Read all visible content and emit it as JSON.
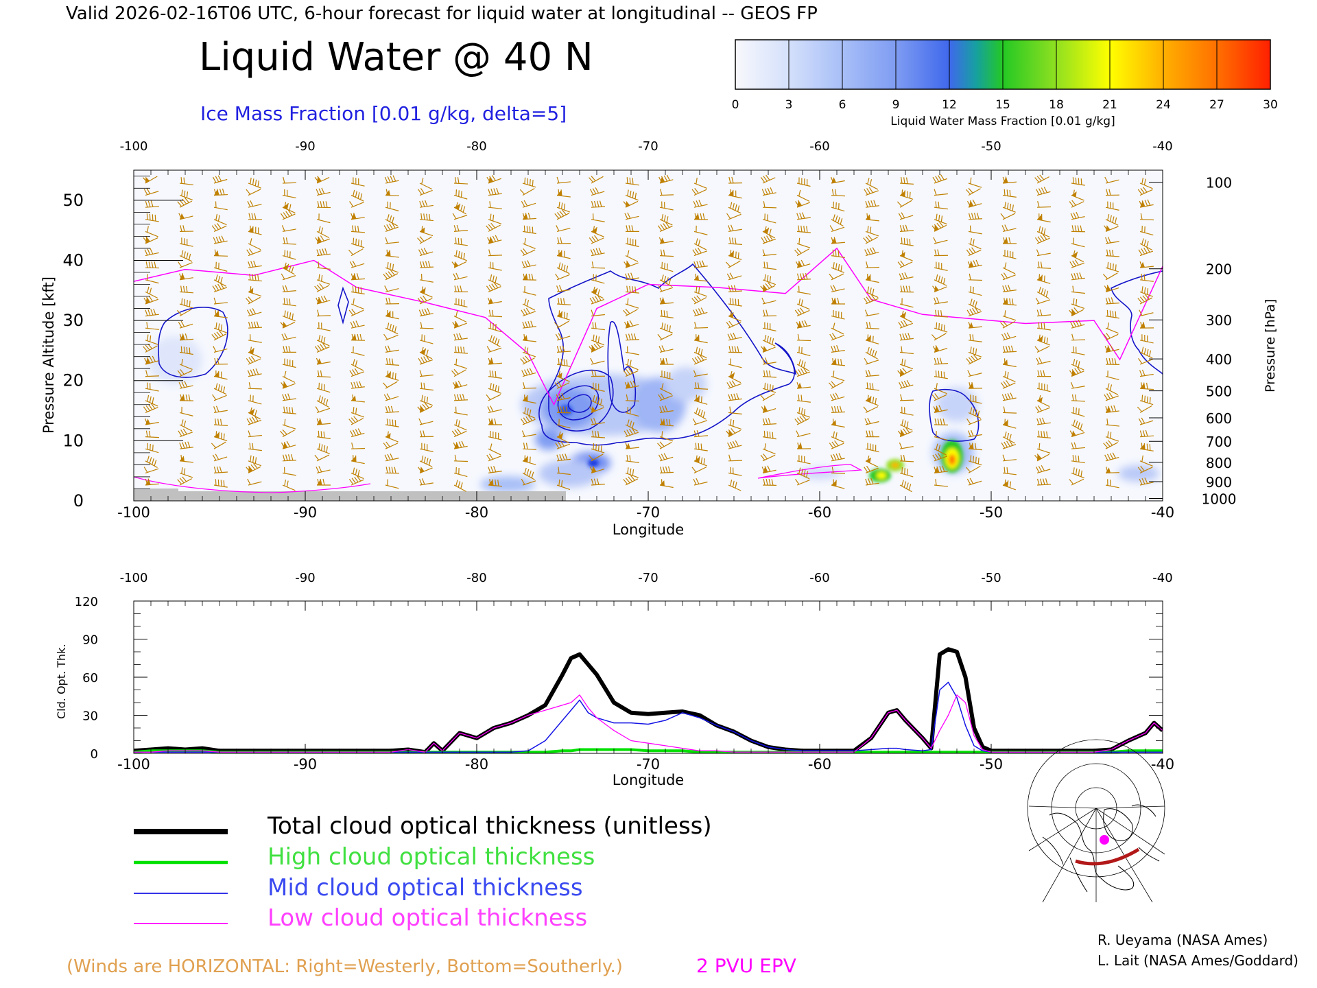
{
  "header": {
    "valid_line": "Valid 2026-02-16T06 UTC, 6-hour forecast for liquid water at longitudinal -- GEOS FP",
    "title": "Liquid Water @ 40 N",
    "subtitle": "Ice Mass Fraction [0.01 g/kg, delta=5]"
  },
  "colorbar": {
    "label": "Liquid Water Mass Fraction [0.01 g/kg]",
    "ticks": [
      "0",
      "3",
      "6",
      "9",
      "12",
      "15",
      "18",
      "21",
      "24",
      "27",
      "30"
    ],
    "colors": [
      "#f8f8fc",
      "#d4e0fb",
      "#a8bff7",
      "#7f9cf2",
      "#3f68ec",
      "#16a0a0",
      "#24c824",
      "#90e020",
      "#ffff00",
      "#ffb000",
      "#ff7000",
      "#ff2000"
    ]
  },
  "colors": {
    "ice_contour": "#1414c8",
    "epv": "#ff00ff",
    "wind_barb": "#c08000",
    "terrain": "#c0c0c0",
    "total": "#000000",
    "high": "#00e000",
    "mid": "#1414e6",
    "low": "#ff00ff"
  },
  "upper_panel": {
    "left_axis_label": "Pressure Altitude [kft]",
    "left_ticks": [
      "0",
      "10",
      "20",
      "30",
      "40",
      "50"
    ],
    "right_axis_label": "Pressure [hPa]",
    "right_ticks": [
      "100",
      "200",
      "300",
      "400",
      "500",
      "600",
      "700",
      "800",
      "900",
      "1000"
    ],
    "x_ticks_top": [
      "-100",
      "-90",
      "-80",
      "-70",
      "-60",
      "-50",
      "-40"
    ],
    "x_ticks_bottom": [
      "-100",
      "-90",
      "-80",
      "-70",
      "-60",
      "-50",
      "-40"
    ],
    "xlabel": "Longitude"
  },
  "lower_panel": {
    "left_axis_label": "Cld. Opt. Thk.",
    "y_ticks": [
      "0",
      "30",
      "60",
      "90",
      "120"
    ],
    "x_ticks_top": [
      "-100",
      "-90",
      "-80",
      "-70",
      "-60",
      "-50",
      "-40"
    ],
    "x_ticks_bottom": [
      "-100",
      "-90",
      "-80",
      "-70",
      "-60",
      "-50",
      "-40"
    ],
    "xlabel": "Longitude"
  },
  "legend": {
    "total": "Total cloud optical thickness (unitless)",
    "high": "High cloud optical thickness",
    "mid": "Mid cloud optical thickness",
    "low": "Low cloud optical thickness"
  },
  "footer": {
    "winds_note": "(Winds are HORIZONTAL: Right=Westerly, Bottom=Southerly.)",
    "epv_note": "2 PVU EPV",
    "credit1": "R. Ueyama (NASA Ames)",
    "credit2": "L. Lait (NASA Ames/Goddard)"
  },
  "chart_data": [
    {
      "type": "heatmap",
      "title": "Liquid Water @ 40 N",
      "xlabel": "Longitude",
      "ylabel": "Pressure Altitude [kft]",
      "y2label": "Pressure [hPa]",
      "xlim": [
        -100,
        -40
      ],
      "ylim": [
        0,
        55
      ],
      "liquid_water_blobs": [
        {
          "lon": -56.0,
          "alt_kft": 4.5,
          "value": 15
        },
        {
          "lon": -55.4,
          "alt_kft": 6.0,
          "value": 24
        },
        {
          "lon": -52.2,
          "alt_kft": 7.5,
          "value": 27
        },
        {
          "lon": -73.5,
          "alt_kft": 6.5,
          "value": 12
        },
        {
          "lon": -76.0,
          "alt_kft": 11.0,
          "value": 9
        },
        {
          "lon": -74.5,
          "alt_kft": 16.0,
          "value": 9
        },
        {
          "lon": -70.5,
          "alt_kft": 15.0,
          "value": 9
        },
        {
          "lon": -68.0,
          "alt_kft": 16.5,
          "value": 6
        },
        {
          "lon": -77.5,
          "alt_kft": 2.5,
          "value": 9
        },
        {
          "lon": -98.0,
          "alt_kft": 22.0,
          "value": 3
        },
        {
          "lon": -41.0,
          "alt_kft": 4.5,
          "value": 3
        },
        {
          "lon": -52.5,
          "alt_kft": 11.0,
          "value": 3
        }
      ],
      "epv_2pvu_line": [
        {
          "lon": -100,
          "alt_kft": 36.5
        },
        {
          "lon": -97,
          "alt_kft": 38.5
        },
        {
          "lon": -93,
          "alt_kft": 37.5
        },
        {
          "lon": -89.5,
          "alt_kft": 40
        },
        {
          "lon": -87,
          "alt_kft": 35.5
        },
        {
          "lon": -83,
          "alt_kft": 33
        },
        {
          "lon": -79.5,
          "alt_kft": 30.5
        },
        {
          "lon": -77,
          "alt_kft": 24.5
        },
        {
          "lon": -75.5,
          "alt_kft": 16
        },
        {
          "lon": -73,
          "alt_kft": 32
        },
        {
          "lon": -70,
          "alt_kft": 36
        },
        {
          "lon": -66,
          "alt_kft": 35.5
        },
        {
          "lon": -62,
          "alt_kft": 34.5
        },
        {
          "lon": -59,
          "alt_kft": 42
        },
        {
          "lon": -57,
          "alt_kft": 33.5
        },
        {
          "lon": -54,
          "alt_kft": 31
        },
        {
          "lon": -48,
          "alt_kft": 29.5
        },
        {
          "lon": -44,
          "alt_kft": 30
        },
        {
          "lon": -42.5,
          "alt_kft": 23.5
        },
        {
          "lon": -40,
          "alt_kft": 39
        }
      ]
    },
    {
      "type": "line",
      "xlabel": "Longitude",
      "ylabel": "Cld. Opt. Thk.",
      "xlim": [
        -100,
        -40
      ],
      "ylim": [
        0,
        120
      ],
      "x": [
        -100,
        -99,
        -98,
        -97,
        -96,
        -95,
        -90,
        -85,
        -84,
        -83,
        -82.5,
        -82,
        -81,
        -80,
        -79,
        -78,
        -77,
        -76,
        -75,
        -74.5,
        -74,
        -73.5,
        -73,
        -72,
        -71,
        -70,
        -69,
        -68,
        -67,
        -66,
        -65,
        -64,
        -63,
        -62,
        -61,
        -60,
        -59,
        -58,
        -57,
        -56,
        -55.5,
        -55,
        -54,
        -53.5,
        -53,
        -52.5,
        -52,
        -51.5,
        -51,
        -50.5,
        -50,
        -48,
        -46,
        -44,
        -43,
        -42,
        -41,
        -40.5,
        -40
      ],
      "series": [
        {
          "name": "Total cloud optical thickness (unitless)",
          "values": [
            2,
            3,
            4,
            3,
            4,
            2,
            2,
            2,
            3,
            1,
            8,
            2,
            16,
            12,
            20,
            24,
            30,
            38,
            62,
            75,
            78,
            70,
            62,
            40,
            32,
            31,
            32,
            33,
            30,
            22,
            17,
            10,
            5,
            3,
            2,
            2,
            2,
            2,
            12,
            32,
            34,
            26,
            12,
            4,
            78,
            82,
            80,
            60,
            20,
            5,
            2,
            2,
            2,
            2,
            3,
            10,
            16,
            24,
            18
          ]
        },
        {
          "name": "High cloud optical thickness",
          "values": [
            1,
            2,
            2,
            2,
            2,
            1,
            1,
            1,
            1,
            1,
            1,
            1,
            1,
            1,
            1,
            1,
            1,
            1,
            2,
            2,
            3,
            3,
            3,
            3,
            3,
            2,
            2,
            2,
            1,
            1,
            1,
            1,
            1,
            1,
            1,
            1,
            1,
            1,
            1,
            1,
            1,
            1,
            1,
            1,
            1,
            1,
            1,
            1,
            1,
            1,
            1,
            1,
            1,
            1,
            1,
            2,
            2,
            2,
            2
          ]
        },
        {
          "name": "Mid cloud optical thickness",
          "values": [
            1,
            1,
            1,
            1,
            1,
            1,
            1,
            1,
            1,
            1,
            1,
            1,
            1,
            1,
            1,
            1,
            2,
            10,
            26,
            34,
            42,
            32,
            28,
            24,
            24,
            23,
            26,
            32,
            28,
            22,
            17,
            10,
            5,
            3,
            2,
            2,
            2,
            2,
            3,
            4,
            4,
            3,
            2,
            3,
            50,
            56,
            44,
            22,
            6,
            2,
            1,
            1,
            1,
            1,
            1,
            1,
            1,
            1,
            1
          ]
        },
        {
          "name": "Low cloud optical thickness",
          "values": [
            1,
            1,
            2,
            2,
            2,
            1,
            1,
            1,
            3,
            1,
            8,
            2,
            16,
            12,
            20,
            24,
            30,
            34,
            38,
            40,
            46,
            36,
            28,
            18,
            10,
            8,
            6,
            4,
            2,
            2,
            1,
            1,
            1,
            1,
            1,
            1,
            1,
            1,
            12,
            32,
            34,
            26,
            12,
            4,
            18,
            30,
            46,
            40,
            14,
            3,
            1,
            1,
            1,
            1,
            3,
            10,
            16,
            24,
            18
          ]
        }
      ]
    }
  ]
}
